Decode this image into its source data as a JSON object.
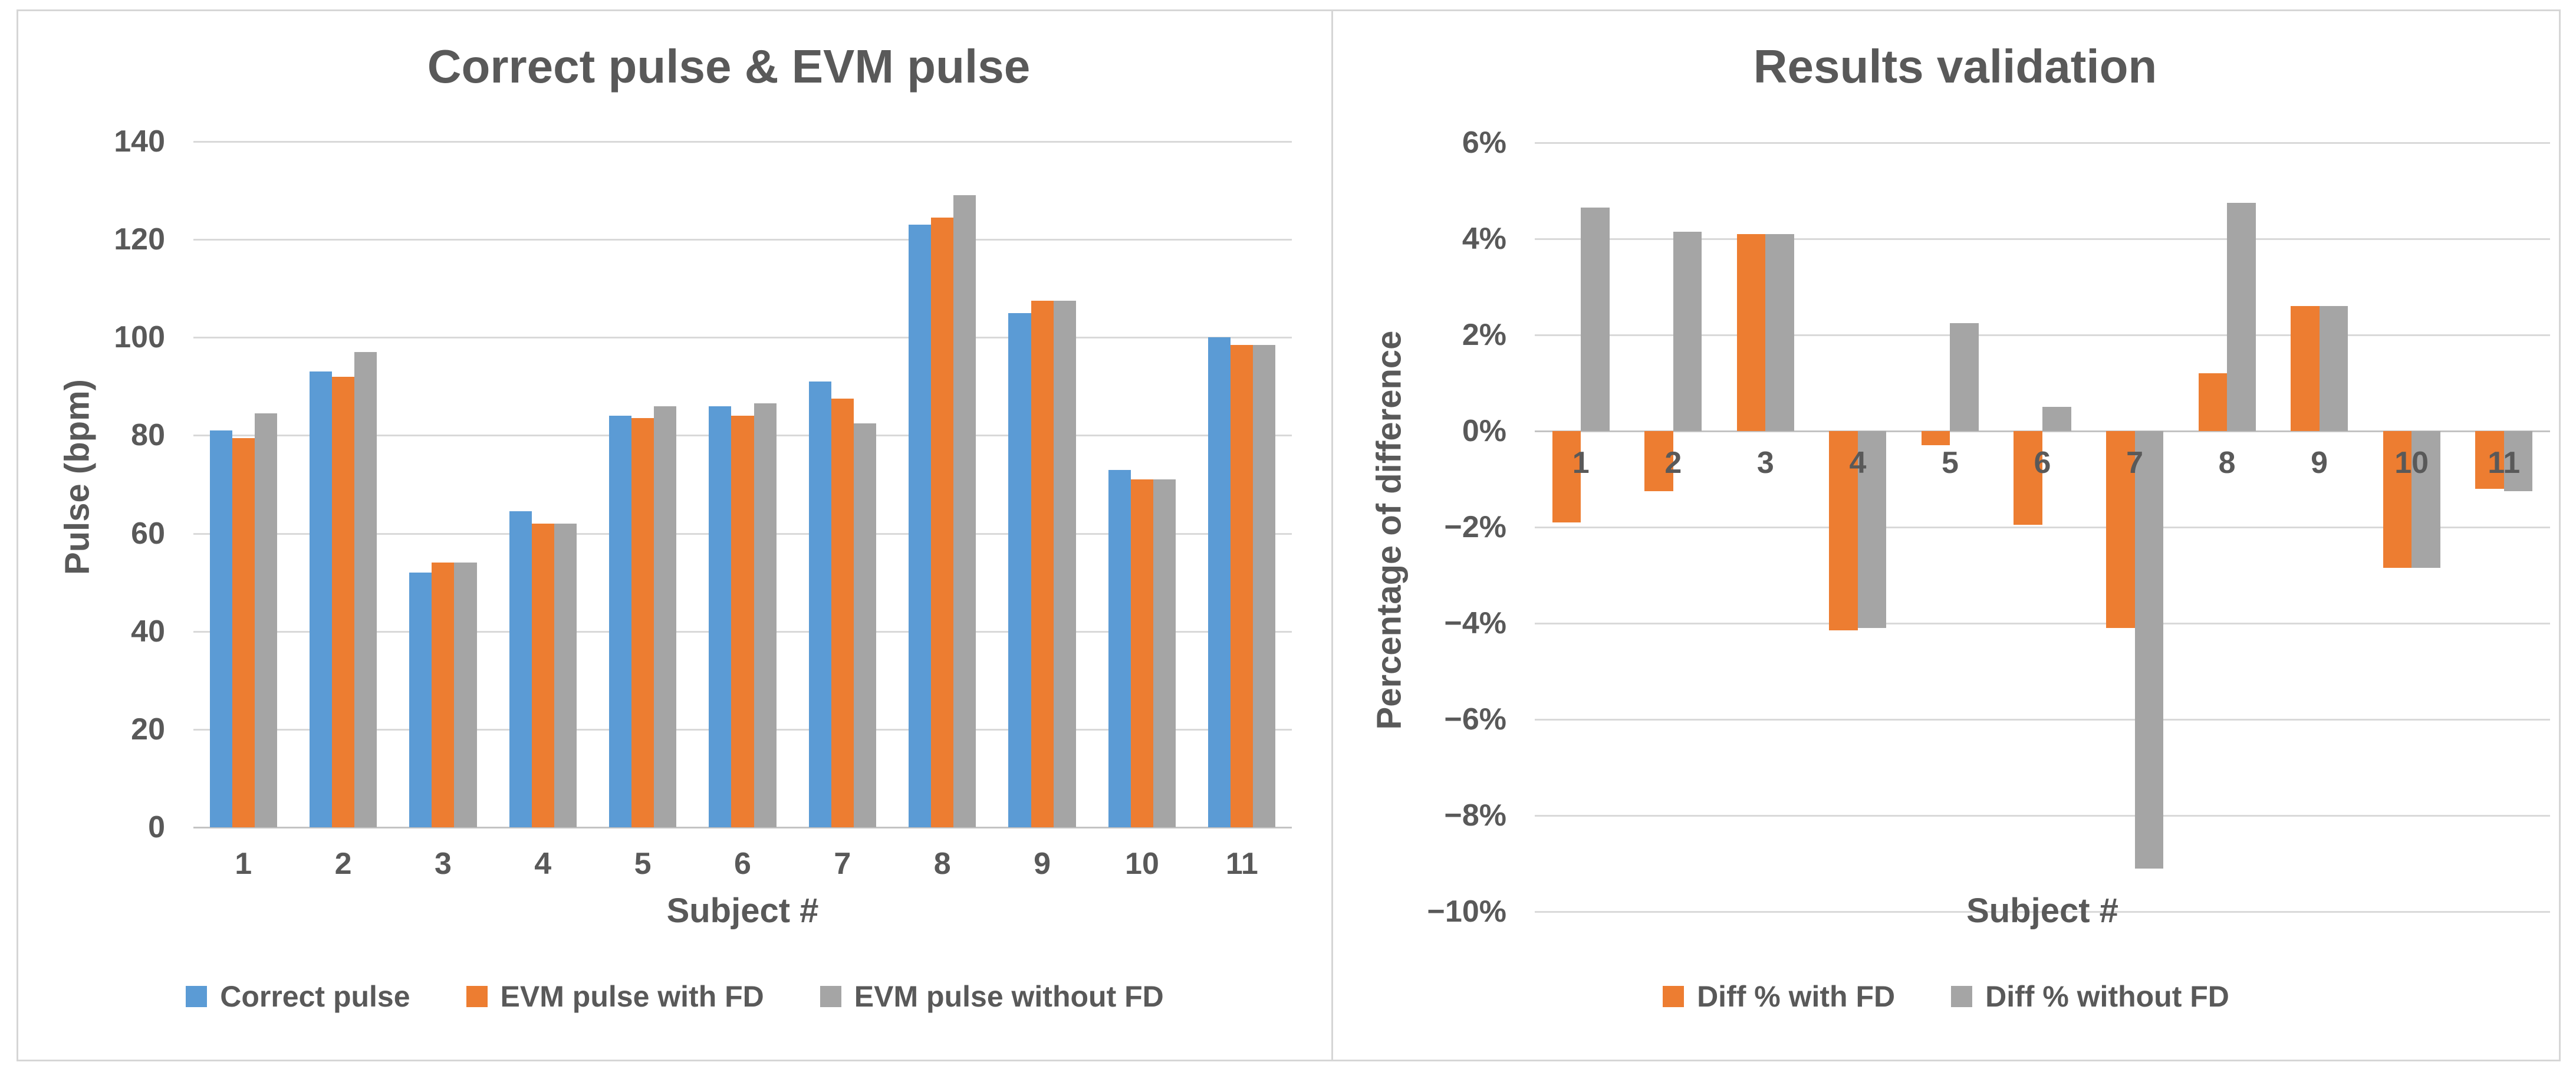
{
  "colors": {
    "blue": "#5B9BD5",
    "orange": "#ED7D31",
    "gray": "#A5A5A5",
    "text": "#595959",
    "gridline": "#D9D9D9",
    "axis_line": "#C3C3C3",
    "panel_border": "#D6D6D6",
    "background": "#FFFFFF"
  },
  "chart_data": [
    {
      "type": "bar",
      "title": "Correct pulse & EVM pulse",
      "xlabel": "Subject #",
      "ylabel": "Pulse (bpm)",
      "categories": [
        "1",
        "2",
        "3",
        "4",
        "5",
        "6",
        "7",
        "8",
        "9",
        "10",
        "11"
      ],
      "series": [
        {
          "name": "Correct pulse",
          "color_key": "blue",
          "values": [
            81,
            93,
            52,
            64.5,
            84,
            86,
            91,
            123,
            105,
            73,
            100
          ]
        },
        {
          "name": "EVM pulse with FD",
          "color_key": "orange",
          "values": [
            79.5,
            92,
            54,
            62,
            83.5,
            84,
            87.5,
            124.5,
            107.5,
            71,
            98.5
          ]
        },
        {
          "name": "EVM pulse without FD",
          "color_key": "gray",
          "values": [
            84.5,
            97,
            54,
            62,
            86,
            86.5,
            82.5,
            129,
            107.5,
            71,
            98.5
          ]
        }
      ],
      "ylim": [
        0,
        140
      ],
      "yticks": [
        {
          "value": 140,
          "label": "140"
        },
        {
          "value": 120,
          "label": "120"
        },
        {
          "value": 100,
          "label": "100"
        },
        {
          "value": 80,
          "label": "80"
        },
        {
          "value": 60,
          "label": "60"
        },
        {
          "value": 40,
          "label": "40"
        },
        {
          "value": 20,
          "label": "20"
        },
        {
          "value": 0,
          "label": "0"
        }
      ],
      "axis_at": 0,
      "grid": true,
      "legend_position": "bottom",
      "cluster_fraction": 0.675,
      "category_label_mode": "below-plot"
    },
    {
      "type": "bar",
      "title": "Results validation",
      "xlabel": "Subject #",
      "ylabel": "Percentage of difference",
      "categories": [
        "1",
        "2",
        "3",
        "4",
        "5",
        "6",
        "7",
        "8",
        "9",
        "10",
        "11"
      ],
      "series": [
        {
          "name": "Diff % with FD",
          "color_key": "orange",
          "values": [
            -1.9,
            -1.25,
            4.1,
            -4.15,
            -0.3,
            -1.95,
            -4.1,
            1.2,
            2.6,
            -2.85,
            -1.2
          ]
        },
        {
          "name": "Diff % without FD",
          "color_key": "gray",
          "values": [
            4.65,
            4.15,
            4.1,
            -4.1,
            2.25,
            0.5,
            -9.1,
            4.75,
            2.6,
            -2.85,
            -1.25
          ]
        }
      ],
      "ylim": [
        -10,
        6
      ],
      "yticks": [
        {
          "value": 6,
          "label": "6%"
        },
        {
          "value": 4,
          "label": "4%"
        },
        {
          "value": 2,
          "label": "2%"
        },
        {
          "value": 0,
          "label": "0%"
        },
        {
          "value": -2,
          "label": "−2%"
        },
        {
          "value": -4,
          "label": "−4%"
        },
        {
          "value": -6,
          "label": "−6%"
        },
        {
          "value": -8,
          "label": "−8%"
        },
        {
          "value": -10,
          "label": "−10%"
        }
      ],
      "axis_at": 0,
      "grid": true,
      "legend_position": "bottom",
      "cluster_fraction": 0.62,
      "category_label_mode": "below-zero"
    }
  ]
}
